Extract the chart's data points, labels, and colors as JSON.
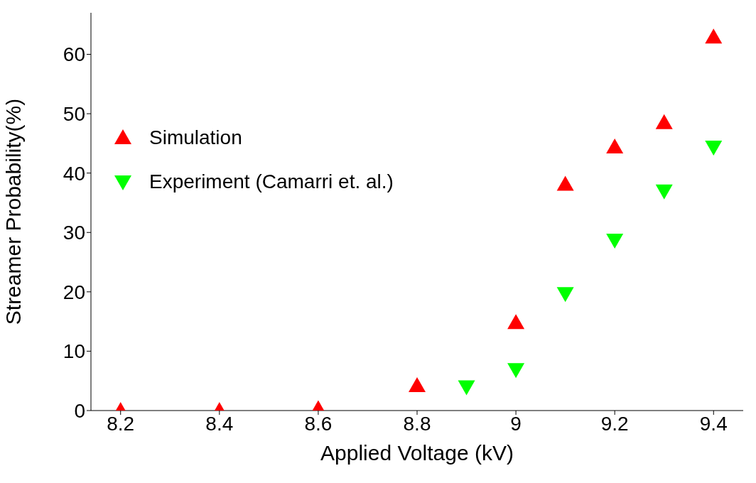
{
  "chart_data": {
    "type": "scatter",
    "xlabel": "Applied Voltage (kV)",
    "ylabel": "Streamer Probability(%)",
    "xlim": [
      8.14,
      9.46
    ],
    "xticks": [
      {
        "value": 8.2,
        "label": "8.2"
      },
      {
        "value": 8.4,
        "label": "8.4"
      },
      {
        "value": 8.6,
        "label": "8.6"
      },
      {
        "value": 8.8,
        "label": "8.8"
      },
      9,
      {
        "value": 9.2,
        "label": "9.2"
      },
      {
        "value": 9.4,
        "label": "9.4"
      }
    ],
    "ylim": [
      0,
      67
    ],
    "yticks": [
      0,
      10,
      20,
      30,
      40,
      50,
      60
    ],
    "grid": false,
    "legend": "left",
    "series": [
      {
        "name": "Simulation",
        "color": "#ff0000",
        "marker": "triangle",
        "x": [
          8.2,
          8.4,
          8.6,
          8.8,
          9.0,
          9.1,
          9.2,
          9.3,
          9.4
        ],
        "values": [
          0,
          0,
          0.3,
          4.2,
          14.8,
          38.1,
          44.4,
          48.5,
          62.9
        ]
      },
      {
        "name": "Experiment (Camarri et. al.)",
        "color": "#00ff00",
        "marker": "triangle-down",
        "x": [
          8.9,
          9.0,
          9.1,
          9.2,
          9.3,
          9.4
        ],
        "values": [
          4.0,
          6.9,
          19.7,
          28.7,
          37.0,
          44.4
        ]
      }
    ]
  }
}
